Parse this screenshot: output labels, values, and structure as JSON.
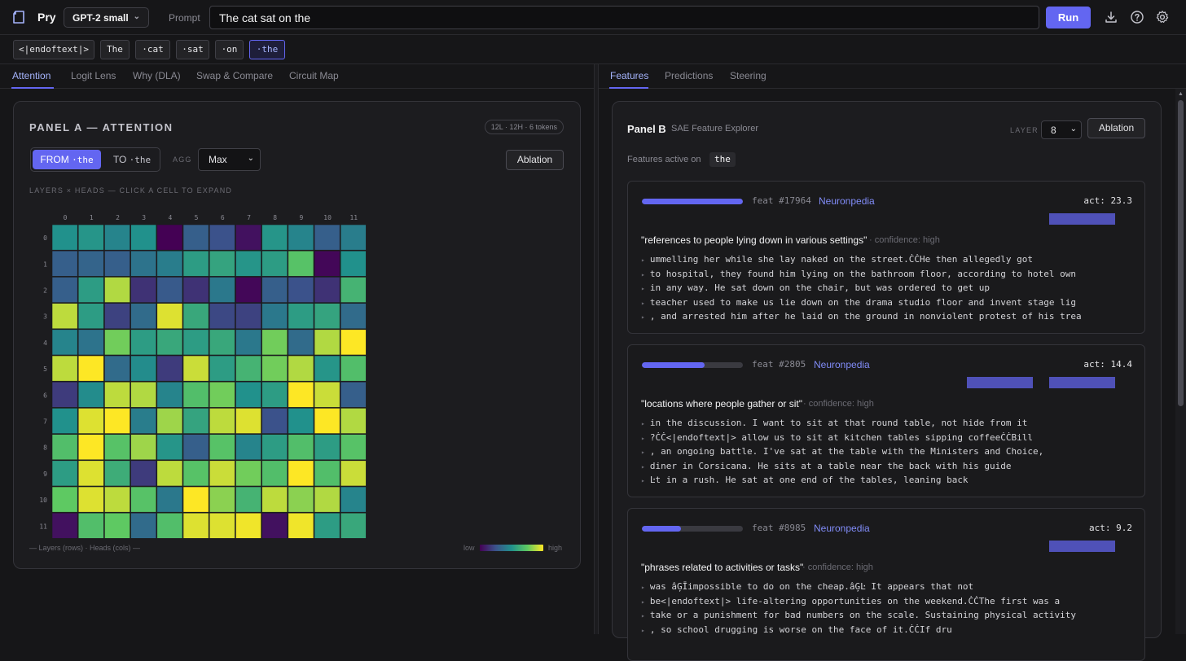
{
  "app": {
    "name": "Pry"
  },
  "model_select": {
    "value": "GPT-2 small"
  },
  "prompt": {
    "label": "Prompt",
    "value": "The cat sat on the"
  },
  "toolbar": {
    "run_label": "Run"
  },
  "tokens": [
    "<|endoftext|>",
    "The",
    "·cat",
    "·sat",
    "·on",
    "·the"
  ],
  "left_tabs": [
    "Attention",
    "Logit Lens",
    "Why (DLA)",
    "Swap & Compare",
    "Circuit Map"
  ],
  "right_tabs": [
    "Features",
    "Predictions",
    "Steering"
  ],
  "panel_a": {
    "title": "PANEL A — ATTENTION",
    "badge": "12L · 12H · 6 tokens",
    "from_label": "FROM",
    "from_token": "·the",
    "to_label": "TO",
    "to_token": "·the",
    "agg_label": "AGG",
    "agg_value": "Max",
    "ablation_label": "Ablation",
    "caption": "LAYERS × HEADS — CLICK A CELL TO EXPAND",
    "legend_axes": "— Layers (rows) · Heads (cols) —",
    "legend_low": "low",
    "legend_high": "high"
  },
  "panel_b": {
    "title": "Panel B",
    "subtitle": "SAE Feature Explorer",
    "layer_label": "LAYER",
    "layer_value": "8",
    "ablation_label": "Ablation",
    "active_on_label": "Features active on",
    "active_token": "the",
    "features": [
      {
        "id": "feat #17964",
        "link": "Neuronpedia",
        "act": "act: 23.3",
        "strength": 1.0,
        "desc": "\"references to people lying down in various settings\"",
        "confidence": "· confidence: high",
        "examples": [
          "ummelling her while she lay naked on the street.ĊĊHe then allegedly got",
          "to hospital, they found him lying on the bathroom floor, according to hotel own",
          "in any way. He sat down on the chair, but was ordered to get up",
          "teacher used to make us lie down on the drama studio floor and invent stage lig",
          ", and arrested him after he laid on the ground in nonviolent protest of his trea"
        ]
      },
      {
        "id": "feat #2805",
        "link": "Neuronpedia",
        "act": "act: 14.4",
        "strength": 0.62,
        "desc": "\"locations where people gather or sit\"",
        "confidence": "· confidence: high",
        "examples": [
          "in the discussion. I want to sit at that round table, not hide from it",
          "?ĊĊ<|endoftext|> allow us to sit at kitchen tables sipping coffeeĊĊBill",
          ", an ongoing battle. I've sat at the table with the Ministers and Choice,",
          "diner in Corsicana. He sits at a table near the back with his guide",
          "Ŀt in a rush. He sat at one end of the tables, leaning back"
        ]
      },
      {
        "id": "feat #8985",
        "link": "Neuronpedia",
        "act": "act: 9.2",
        "strength": 0.39,
        "desc": "\"phrases related to activities or tasks\"",
        "confidence": "· confidence: high",
        "examples": [
          "was âĢĪimpossible to do on the cheap.âĢĿ It appears that not",
          "be<|endoftext|> life-altering opportunities on the weekend.ĊĊThe first was a",
          "take or a punishment for bad numbers on the scale. Sustaining physical activity",
          ", so school drugging is worse on the face of it.ĊĊIf dru"
        ]
      }
    ]
  },
  "chart_data": {
    "type": "heatmap",
    "row_labels": [
      "0",
      "1",
      "2",
      "3",
      "4",
      "5",
      "6",
      "7",
      "8",
      "9",
      "10",
      "11"
    ],
    "col_labels": [
      "0",
      "1",
      "2",
      "3",
      "4",
      "5",
      "6",
      "7",
      "8",
      "9",
      "10",
      "11"
    ],
    "scale": "viridis",
    "range": [
      0,
      1
    ],
    "values": [
      [
        0.5,
        0.52,
        0.45,
        0.5,
        0.0,
        0.3,
        0.25,
        0.05,
        0.52,
        0.45,
        0.3,
        0.42
      ],
      [
        0.3,
        0.32,
        0.3,
        0.38,
        0.42,
        0.55,
        0.58,
        0.52,
        0.55,
        0.72,
        0.02,
        0.5
      ],
      [
        0.3,
        0.55,
        0.88,
        0.15,
        0.28,
        0.15,
        0.4,
        0.02,
        0.3,
        0.25,
        0.15,
        0.65
      ],
      [
        0.9,
        0.55,
        0.2,
        0.35,
        0.95,
        0.6,
        0.22,
        0.2,
        0.4,
        0.55,
        0.58,
        0.35
      ],
      [
        0.45,
        0.38,
        0.78,
        0.55,
        0.6,
        0.55,
        0.6,
        0.4,
        0.78,
        0.35,
        0.88,
        1.0
      ],
      [
        0.9,
        1.0,
        0.35,
        0.48,
        0.18,
        0.92,
        0.55,
        0.65,
        0.78,
        0.88,
        0.52,
        0.7
      ],
      [
        0.18,
        0.48,
        0.9,
        0.88,
        0.45,
        0.7,
        0.78,
        0.5,
        0.55,
        1.0,
        0.92,
        0.3
      ],
      [
        0.5,
        0.95,
        1.0,
        0.42,
        0.85,
        0.58,
        0.9,
        0.95,
        0.25,
        0.5,
        1.0,
        0.88
      ],
      [
        0.7,
        1.0,
        0.72,
        0.85,
        0.52,
        0.3,
        0.72,
        0.45,
        0.55,
        0.7,
        0.55,
        0.72
      ],
      [
        0.55,
        0.95,
        0.62,
        0.18,
        0.9,
        0.72,
        0.92,
        0.78,
        0.7,
        1.0,
        0.7,
        0.92
      ],
      [
        0.75,
        0.95,
        0.9,
        0.72,
        0.4,
        1.0,
        0.82,
        0.65,
        0.9,
        0.82,
        0.88,
        0.45
      ],
      [
        0.05,
        0.7,
        0.75,
        0.35,
        0.7,
        0.95,
        0.95,
        0.98,
        0.05,
        0.98,
        0.55,
        0.6
      ]
    ]
  }
}
